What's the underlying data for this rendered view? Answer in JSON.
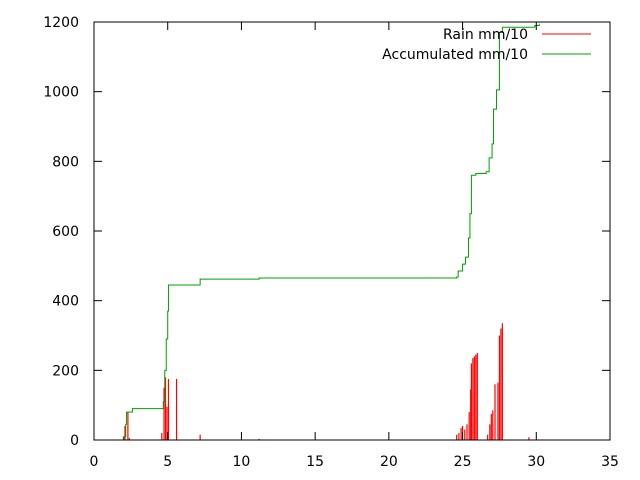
{
  "chart_data": {
    "type": "line",
    "title": "",
    "xlabel": "",
    "ylabel": "",
    "xlim": [
      0,
      35
    ],
    "ylim": [
      0,
      1200
    ],
    "xticks": [
      0,
      5,
      10,
      15,
      20,
      25,
      30,
      35
    ],
    "yticks": [
      0,
      200,
      400,
      600,
      800,
      1000,
      1200
    ],
    "grid": false,
    "legend_position": "top-right",
    "series": [
      {
        "name": "Rain mm/10",
        "style": "impulses",
        "color": "#ff0000",
        "points": [
          [
            2.0,
            10
          ],
          [
            2.1,
            40
          ],
          [
            2.3,
            80
          ],
          [
            2.4,
            5
          ],
          [
            4.6,
            20
          ],
          [
            4.75,
            150
          ],
          [
            4.85,
            180
          ],
          [
            4.95,
            95
          ],
          [
            5.05,
            175
          ],
          [
            5.6,
            175
          ],
          [
            7.2,
            15
          ],
          [
            11.2,
            3
          ],
          [
            24.6,
            15
          ],
          [
            24.75,
            20
          ],
          [
            24.9,
            35
          ],
          [
            25.0,
            40
          ],
          [
            25.15,
            30
          ],
          [
            25.3,
            45
          ],
          [
            25.45,
            80
          ],
          [
            25.55,
            145
          ],
          [
            25.6,
            220
          ],
          [
            25.7,
            235
          ],
          [
            25.8,
            240
          ],
          [
            25.9,
            245
          ],
          [
            26.0,
            250
          ],
          [
            26.7,
            15
          ],
          [
            26.85,
            45
          ],
          [
            26.95,
            75
          ],
          [
            27.05,
            85
          ],
          [
            27.2,
            160
          ],
          [
            27.4,
            165
          ],
          [
            27.5,
            300
          ],
          [
            27.6,
            320
          ],
          [
            27.7,
            335
          ],
          [
            29.5,
            8
          ]
        ]
      },
      {
        "name": "Accumulated mm/10",
        "style": "steps",
        "color": "#00a000",
        "points": [
          [
            0,
            0
          ],
          [
            2.0,
            0
          ],
          [
            2.05,
            10
          ],
          [
            2.15,
            45
          ],
          [
            2.2,
            80
          ],
          [
            2.6,
            90
          ],
          [
            4.6,
            90
          ],
          [
            4.7,
            110
          ],
          [
            4.8,
            200
          ],
          [
            4.9,
            290
          ],
          [
            5.0,
            370
          ],
          [
            5.05,
            445
          ],
          [
            7.2,
            445
          ],
          [
            7.2,
            462
          ],
          [
            11.2,
            465
          ],
          [
            24.6,
            468
          ],
          [
            24.7,
            485
          ],
          [
            25.0,
            505
          ],
          [
            25.2,
            525
          ],
          [
            25.4,
            580
          ],
          [
            25.5,
            650
          ],
          [
            25.6,
            760
          ],
          [
            25.9,
            765
          ],
          [
            26.6,
            770
          ],
          [
            26.8,
            810
          ],
          [
            27.0,
            850
          ],
          [
            27.1,
            950
          ],
          [
            27.3,
            1005
          ],
          [
            27.5,
            1170
          ],
          [
            27.7,
            1185
          ],
          [
            29.9,
            1190
          ],
          [
            30.2,
            1195
          ]
        ]
      }
    ]
  }
}
